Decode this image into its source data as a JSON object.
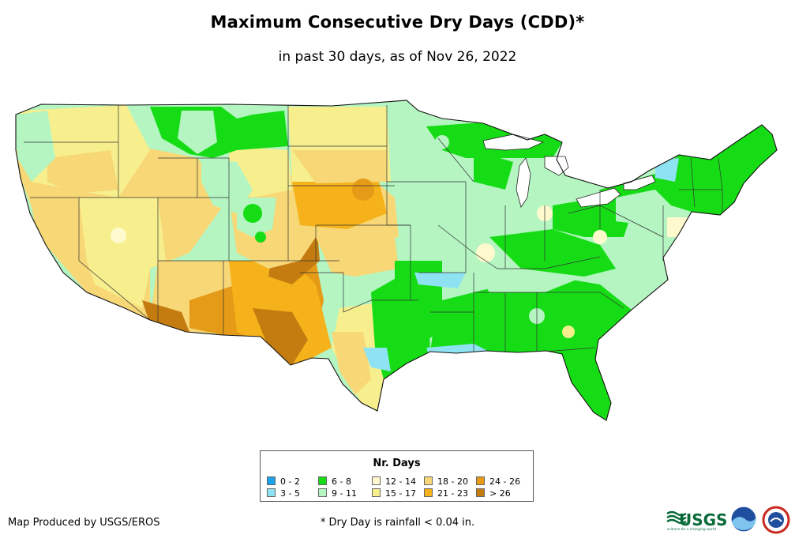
{
  "title": "Maximum Consecutive Dry Days (CDD)*",
  "subtitle": "in past 30 days, as of Nov 26, 2022",
  "legend": {
    "title": "Nr. Days",
    "items": [
      {
        "label": "0 - 2",
        "color": "#1aa3e8"
      },
      {
        "label": "3 - 5",
        "color": "#8ee3f2"
      },
      {
        "label": "6 - 8",
        "color": "#16dc16"
      },
      {
        "label": "9 - 11",
        "color": "#b4f5c2"
      },
      {
        "label": "12 - 14",
        "color": "#fffacd"
      },
      {
        "label": "15 - 17",
        "color": "#f7ef8e"
      },
      {
        "label": "18 - 20",
        "color": "#f7d776"
      },
      {
        "label": "21 - 23",
        "color": "#f5b21a"
      },
      {
        "label": "24 - 26",
        "color": "#e59a18"
      },
      {
        "label": "> 26",
        "color": "#c47c10"
      }
    ]
  },
  "credit": "Map Produced by USGS/EROS",
  "footnote": "* Dry Day is rainfall < 0.04 in.",
  "logos": {
    "usgs": "USGS",
    "usgs_tagline": "science for a changing world"
  }
}
